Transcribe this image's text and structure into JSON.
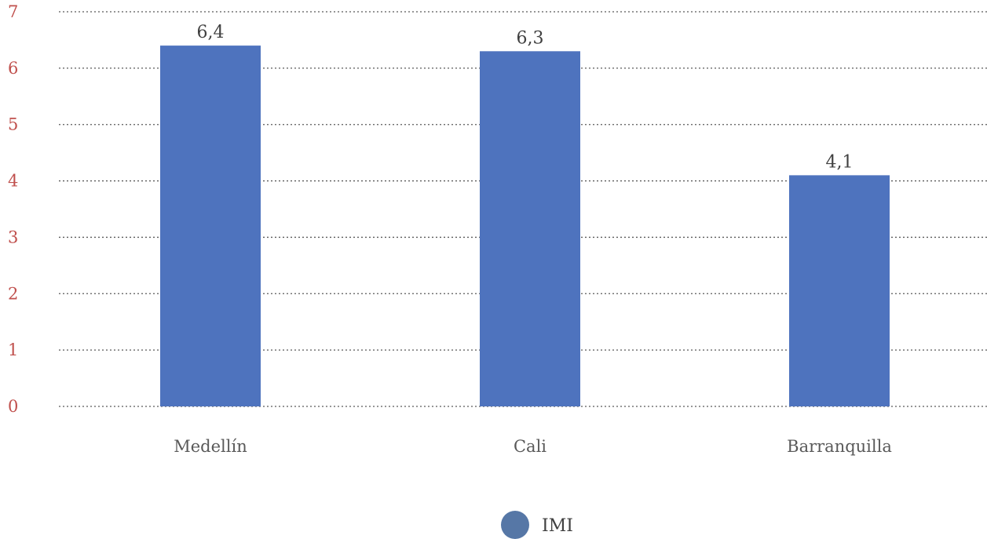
{
  "chart_data": {
    "type": "bar",
    "categories": [
      "Medellín",
      "Cali",
      "Barranquilla"
    ],
    "series": [
      {
        "name": "IMI",
        "values": [
          6.4,
          6.3,
          4.1
        ],
        "labels": [
          "6,4",
          "6,3",
          "4,1"
        ]
      }
    ],
    "yticks": [
      "0",
      "1",
      "2",
      "3",
      "4",
      "5",
      "6",
      "7"
    ],
    "ylim": [
      0,
      7
    ],
    "grid": true,
    "legend": "bottom",
    "colors": {
      "bar": "#4e73be",
      "legend_marker": "#5677a6",
      "ytick": "#c0504d",
      "grid": "#595959"
    }
  }
}
